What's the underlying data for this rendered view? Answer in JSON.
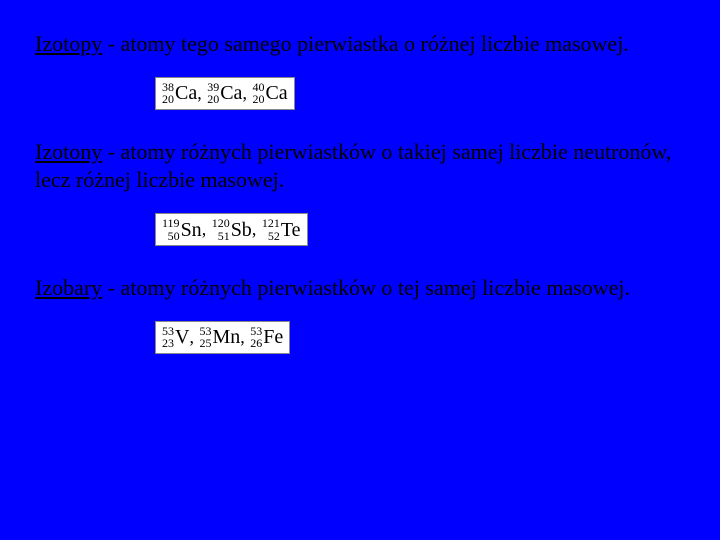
{
  "background_color": "#0000ff",
  "text_color": "#000000",
  "formula_bg": "#ffffff",
  "font_family": "Times New Roman",
  "definition_fontsize": 22,
  "formula_fontsize": 18,
  "sections": [
    {
      "term": "Izotopy",
      "rest": " - atomy tego samego pierwiastka o różnej liczbie masowej.",
      "isotopes": [
        {
          "mass": "38",
          "atomic": "20",
          "symbol": "Ca"
        },
        {
          "mass": "39",
          "atomic": "20",
          "symbol": "Ca"
        },
        {
          "mass": "40",
          "atomic": "20",
          "symbol": "Ca"
        }
      ]
    },
    {
      "term": "Izotony",
      "rest": " - atomy różnych pierwiastków o takiej samej liczbie neutronów, lecz różnej liczbie masowej.",
      "isotopes": [
        {
          "mass": "119",
          "atomic": "50",
          "symbol": "Sn"
        },
        {
          "mass": "120",
          "atomic": "51",
          "symbol": "Sb"
        },
        {
          "mass": "121",
          "atomic": "52",
          "symbol": "Te"
        }
      ]
    },
    {
      "term": "Izobary",
      "rest": " - atomy różnych pierwiastków o tej samej liczbie masowej.",
      "isotopes": [
        {
          "mass": "53",
          "atomic": "23",
          "symbol": "V"
        },
        {
          "mass": "53",
          "atomic": "25",
          "symbol": "Mn"
        },
        {
          "mass": "53",
          "atomic": "26",
          "symbol": "Fe"
        }
      ]
    }
  ]
}
